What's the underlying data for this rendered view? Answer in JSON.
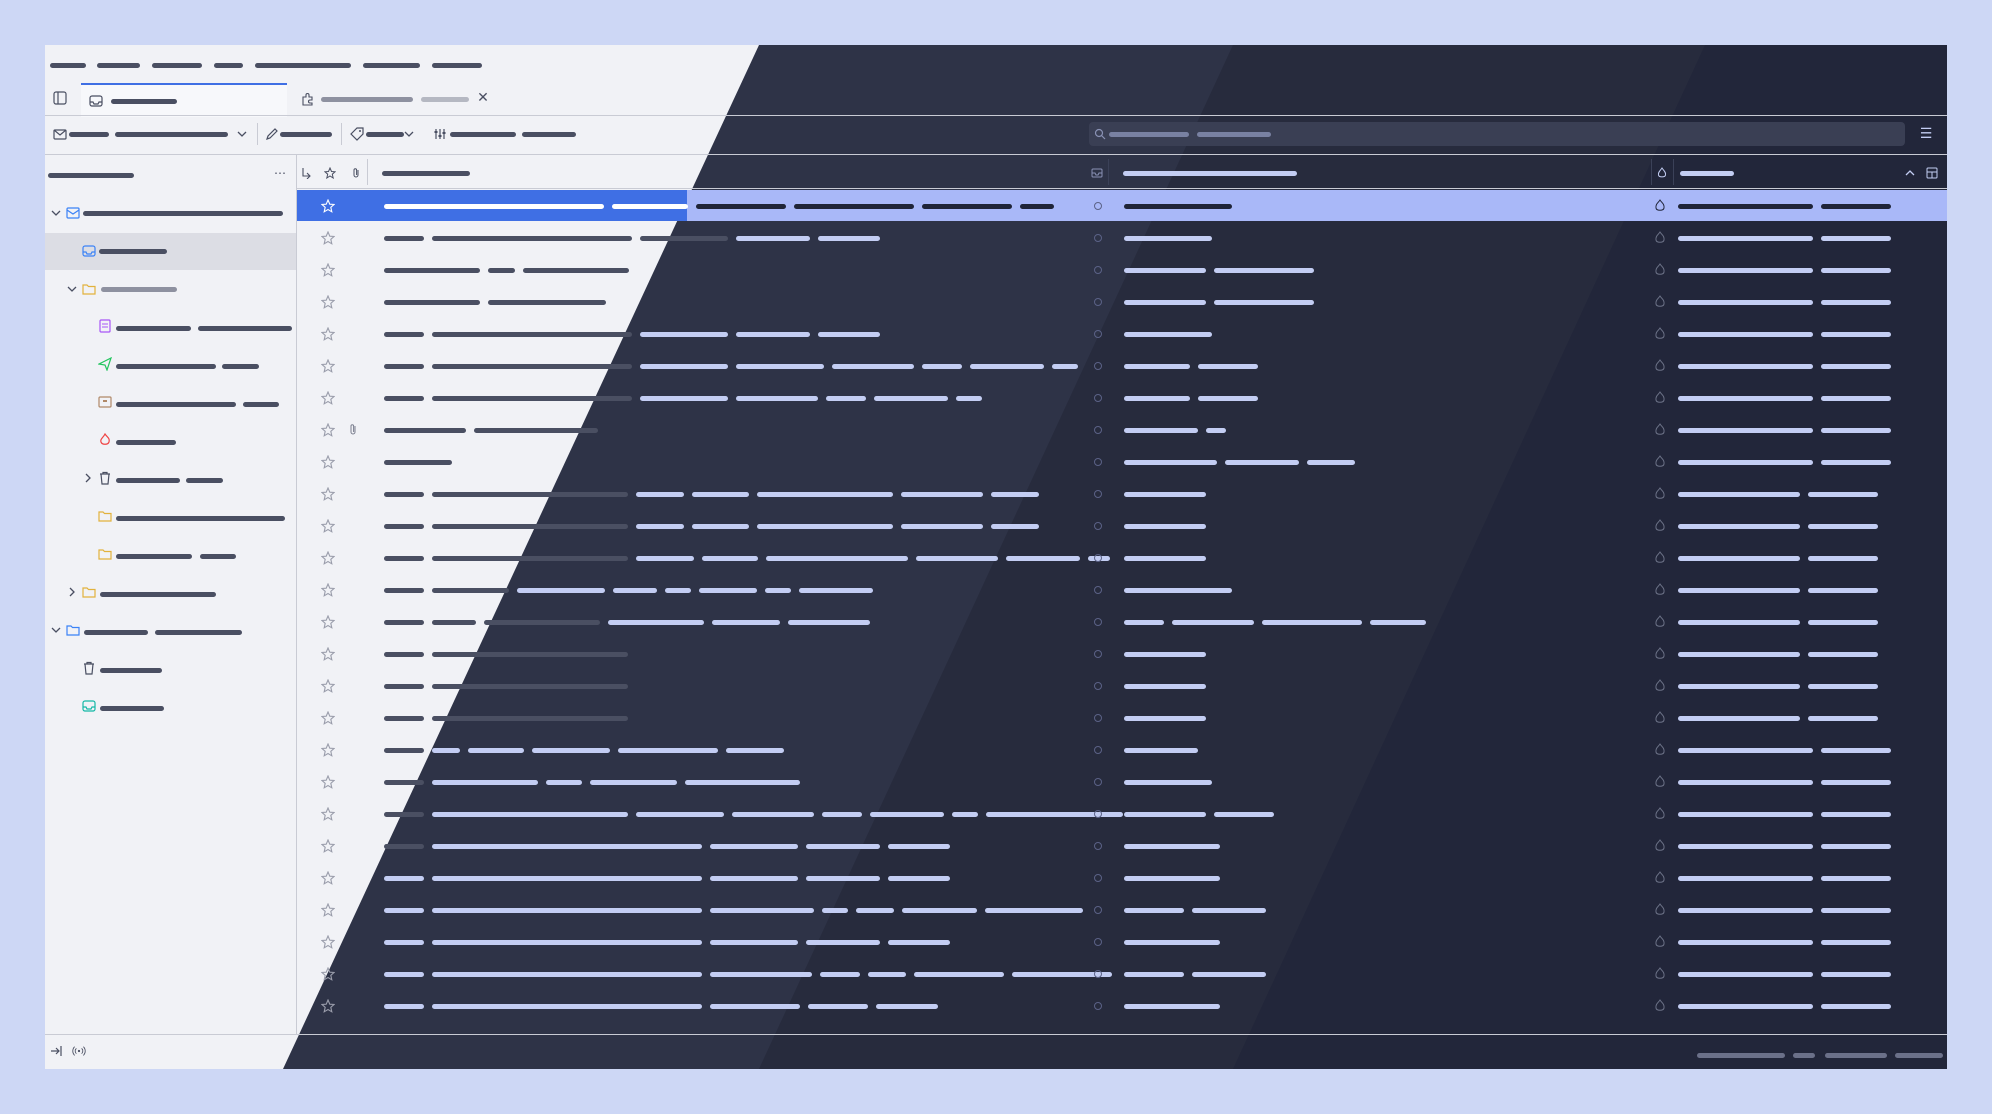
{
  "window": {
    "menubar": {
      "items": [
        "",
        "",
        "",
        "",
        "",
        "",
        ""
      ]
    },
    "tabs": [
      {
        "label": "",
        "active": true,
        "icon": "inbox-icon"
      },
      {
        "label": "",
        "active": false,
        "icon": "puzzle-icon"
      }
    ],
    "toolbar": {
      "get_messages_label": "",
      "write_label": "",
      "tag_label": "",
      "filter_label": "",
      "search_placeholder": ""
    },
    "folder_pane": {
      "header_label": "",
      "accounts": [
        {
          "name": "",
          "expanded": true,
          "folders": [
            {
              "name": "",
              "icon": "inbox-icon",
              "selected": true
            },
            {
              "name": "",
              "icon": "folder-icon",
              "expanded": true,
              "children": [
                {
                  "name": "",
                  "icon": "drafts-icon"
                },
                {
                  "name": "",
                  "icon": "sent-icon"
                },
                {
                  "name": "",
                  "icon": "archive-icon"
                },
                {
                  "name": "",
                  "icon": "junk-icon"
                },
                {
                  "name": "",
                  "icon": "trash-icon",
                  "collapsed": true
                },
                {
                  "name": "",
                  "icon": "folder-icon"
                },
                {
                  "name": "",
                  "icon": "folder-icon"
                }
              ]
            },
            {
              "name": "",
              "icon": "folder-icon",
              "collapsed": true
            }
          ]
        },
        {
          "name": "",
          "expanded": true,
          "folders": [
            {
              "name": "",
              "icon": "trash-icon"
            },
            {
              "name": "",
              "icon": "inbox-icon"
            }
          ]
        }
      ]
    },
    "message_list": {
      "columns": [
        {
          "key": "thread",
          "label": ""
        },
        {
          "key": "star",
          "label": ""
        },
        {
          "key": "attachment",
          "label": ""
        },
        {
          "key": "subject",
          "label": ""
        },
        {
          "key": "status",
          "label": ""
        },
        {
          "key": "correspondent",
          "label": ""
        },
        {
          "key": "junk",
          "label": ""
        },
        {
          "key": "date",
          "label": "",
          "sorted": "ascending"
        }
      ],
      "row_count": 26,
      "selected_row": 0
    },
    "status_bar": {
      "text": ""
    },
    "colors": {
      "accent": "#3f6fe4",
      "selection": "#a9b8f8",
      "background_light": "#f1f2f6",
      "background_dark": "#2e3347",
      "frame": "#cdd7f5"
    }
  }
}
